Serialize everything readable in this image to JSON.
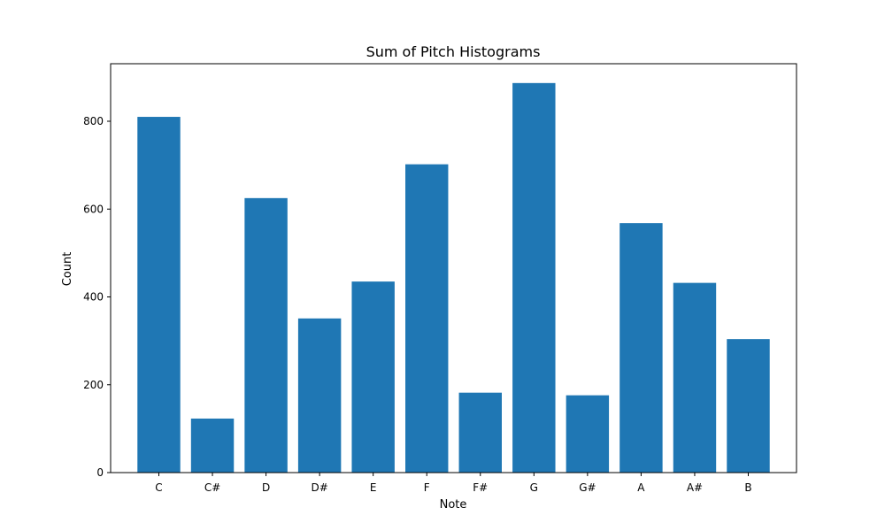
{
  "chart_data": {
    "type": "bar",
    "title": "Sum of Pitch Histograms",
    "xlabel": "Note",
    "ylabel": "Count",
    "categories": [
      "C",
      "C#",
      "D",
      "D#",
      "E",
      "F",
      "F#",
      "G",
      "G#",
      "A",
      "A#",
      "B"
    ],
    "values": [
      810,
      123,
      625,
      351,
      435,
      702,
      182,
      887,
      176,
      568,
      432,
      304
    ],
    "ylim": [
      0,
      931
    ],
    "yticks": [
      0,
      200,
      400,
      600,
      800
    ],
    "grid": false,
    "legend": "none",
    "bar_color": "#1f77b4"
  }
}
